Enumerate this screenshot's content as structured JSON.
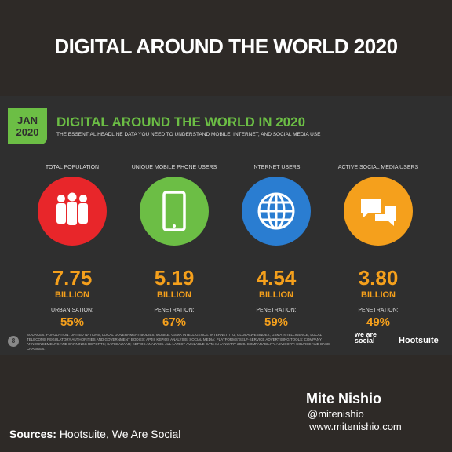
{
  "header": {
    "title": "DIGITAL AROUND THE WORLD 2020"
  },
  "slide": {
    "badge": [
      "JAN",
      "2020"
    ],
    "title": "DIGITAL AROUND THE WORLD IN 2020",
    "subtitle": "THE ESSENTIAL HEADLINE DATA YOU NEED TO UNDERSTAND MOBILE, INTERNET, AND SOCIAL MEDIA USE",
    "stats": [
      {
        "label": "TOTAL POPULATION",
        "value": "7.75",
        "unit": "BILLION",
        "sublabel": "URBANISATION:",
        "percent": "55%"
      },
      {
        "label": "UNIQUE MOBILE PHONE USERS",
        "value": "5.19",
        "unit": "BILLION",
        "sublabel": "PENETRATION:",
        "percent": "67%"
      },
      {
        "label": "INTERNET USERS",
        "value": "4.54",
        "unit": "BILLION",
        "sublabel": "PENETRATION:",
        "percent": "59%"
      },
      {
        "label": "ACTIVE SOCIAL MEDIA USERS",
        "value": "3.80",
        "unit": "BILLION",
        "sublabel": "PENETRATION:",
        "percent": "49%"
      }
    ],
    "page_number": "8",
    "sources": "SOURCES: POPULATION: UNITED NATIONS; LOCAL GOVERNMENT BODIES. MOBILE: GSMA INTELLIGENCE. INTERNET: ITU; GLOBALWEBINDEX; GSMA INTELLIGENCE; LOCAL TELECOMS REGULATORY AUTHORITIES AND GOVERNMENT BODIES; APJII; KEPIOS ANALYSIS. SOCIAL MEDIA: PLATFORMS' SELF-SERVICE ADVERTISING TOOLS; COMPANY ANNOUNCEMENTS AND EARNINGS REPORTS; CAFEBAZAAR; KEPIOS ANALYSIS. ALL LATEST AVAILABLE DATA IN JANUARY 2020. COMPARABILITY ADVISORY: SOURCE AND BASE CHANGES.",
    "logo_1": "we are social",
    "logo_2": "Hootsuite"
  },
  "footer": {
    "author": "Mite Nishio",
    "handle": "@mitenishio",
    "website": "www.mitenishio.com",
    "sources_label": "Sources:",
    "sources": "Hootsuite, We Are Social"
  }
}
